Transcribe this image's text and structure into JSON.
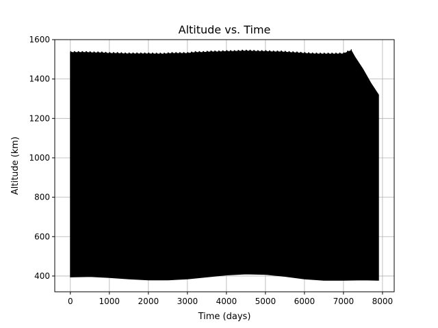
{
  "chart_data": {
    "type": "area",
    "title": "Altitude vs. Time",
    "xlabel": "Time (days)",
    "ylabel": "Altitude (km)",
    "xlim": [
      -400,
      8300
    ],
    "ylim": [
      320,
      1600
    ],
    "xticks": [
      0,
      1000,
      2000,
      3000,
      4000,
      5000,
      6000,
      7000,
      8000
    ],
    "yticks": [
      400,
      600,
      800,
      1000,
      1200,
      1400,
      1600
    ],
    "grid": true,
    "series": [
      {
        "color": "#000000",
        "upper_envelope": {
          "x": [
            0,
            200,
            400,
            600,
            800,
            1000,
            1200,
            1400,
            1600,
            1800,
            2000,
            2200,
            2400,
            2600,
            2800,
            3000,
            3200,
            3400,
            3600,
            3800,
            4000,
            4200,
            4400,
            4600,
            4800,
            5000,
            5200,
            5400,
            5600,
            5800,
            6000,
            6200,
            6400,
            6600,
            6800,
            7000,
            7200,
            7300,
            7500,
            7700,
            7900
          ],
          "y": [
            1535,
            1535,
            1535,
            1533,
            1533,
            1530,
            1530,
            1528,
            1528,
            1528,
            1528,
            1527,
            1527,
            1530,
            1530,
            1530,
            1535,
            1535,
            1538,
            1538,
            1540,
            1540,
            1542,
            1542,
            1540,
            1540,
            1538,
            1538,
            1535,
            1533,
            1530,
            1528,
            1527,
            1527,
            1527,
            1528,
            1545,
            1510,
            1450,
            1380,
            1320
          ]
        },
        "lower_envelope": {
          "x": [
            0,
            500,
            1000,
            1500,
            2000,
            2500,
            3000,
            3500,
            4000,
            4500,
            5000,
            5500,
            6000,
            6500,
            7000,
            7500,
            7900
          ],
          "y": [
            395,
            397,
            392,
            385,
            380,
            380,
            385,
            395,
            405,
            410,
            408,
            398,
            385,
            378,
            378,
            380,
            378
          ]
        }
      }
    ]
  }
}
